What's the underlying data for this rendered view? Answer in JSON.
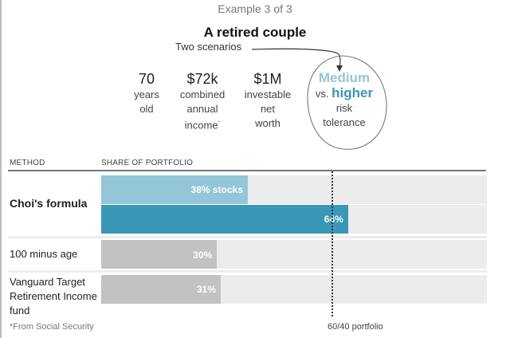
{
  "header": {
    "kicker": "Example 3 of 3",
    "title": "A retired couple",
    "subtitle": "Two scenarios"
  },
  "stats": [
    {
      "value": "70",
      "lines": [
        "years",
        "old",
        ""
      ]
    },
    {
      "value": "$72k",
      "lines": [
        "combined",
        "annual",
        "income"
      ],
      "note_marker": "*"
    },
    {
      "value": "$1M",
      "lines": [
        "investable",
        "net",
        "worth"
      ]
    }
  ],
  "risk": {
    "medium": "Medium",
    "vs": "vs.",
    "higher": "higher",
    "line3": "risk",
    "line4": "tolerance"
  },
  "colors": {
    "medium": "#93c6d8",
    "higher": "#3a97b6",
    "other": "#c2c2c2",
    "track": "#ececee"
  },
  "chart_data": {
    "type": "bar",
    "orientation": "horizontal",
    "title": "A retired couple",
    "column_headers": [
      "METHOD",
      "SHARE OF PORTFOLIO"
    ],
    "xlim": [
      0,
      100
    ],
    "unit": "% stocks",
    "series_rows": [
      {
        "method": "Choi's formula",
        "bars": [
          {
            "scenario": "Medium risk tolerance",
            "value": 38,
            "label": "38% stocks",
            "color": "#93c6d8"
          },
          {
            "scenario": "Higher risk tolerance",
            "value": 64,
            "label": "64%",
            "color": "#3a97b6"
          }
        ]
      },
      {
        "method": "100 minus age",
        "bars": [
          {
            "value": 30,
            "label": "30%",
            "color": "#c2c2c2"
          }
        ]
      },
      {
        "method": "Vanguard Target Retirement Income fund",
        "bars": [
          {
            "value": 31,
            "label": "31%",
            "color": "#c2c2c2"
          }
        ]
      }
    ],
    "reference_line": {
      "value": 60,
      "label": "60/40 portfolio",
      "style": "dotted"
    },
    "footnote": "*From Social Security"
  }
}
